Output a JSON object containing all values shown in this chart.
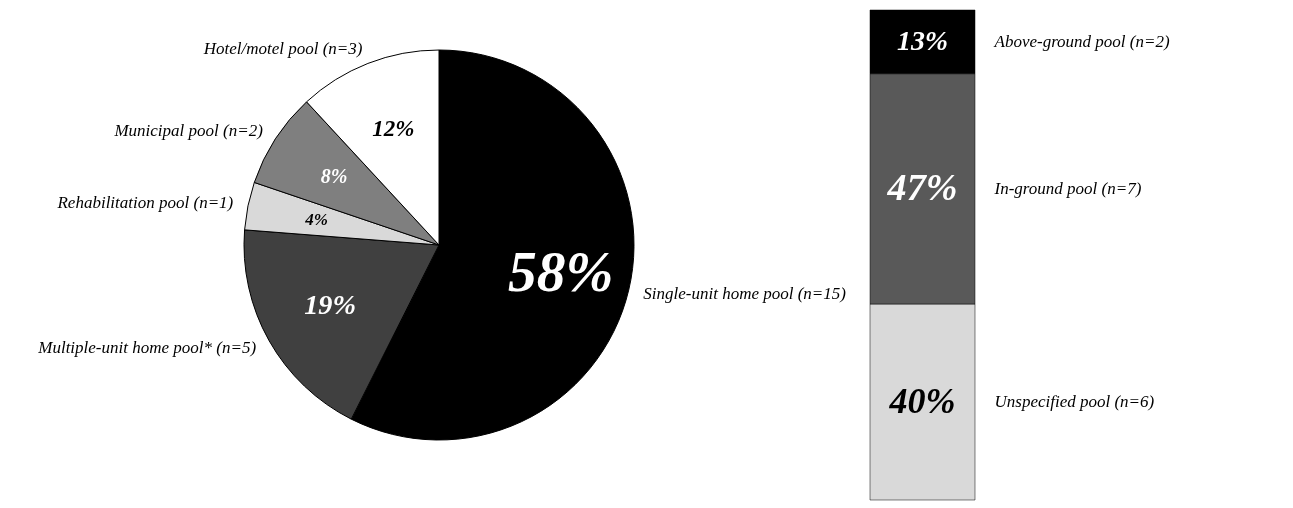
{
  "chart_data": [
    {
      "type": "pie",
      "categories": [
        "Single-unit home pool (n=15)",
        "Multiple-unit home pool* (n=5)",
        "Rehabilitation pool (n=1)",
        "Municipal pool (n=2)",
        "Hotel/motel pool (n=3)"
      ],
      "values": [
        58,
        19,
        4,
        8,
        12
      ],
      "colors": [
        "#000000",
        "#404040",
        "#d9d9d9",
        "#7f7f7f",
        "#ffffff"
      ],
      "value_labels": [
        "58%",
        "19%",
        "4%",
        "8%",
        "12%"
      ]
    },
    {
      "type": "bar",
      "stacked": true,
      "categories": [
        null
      ],
      "tick_labels": false,
      "series": [
        {
          "name": "Unspecified pool (n=6)",
          "color": "#d9d9d9",
          "values": [
            40
          ],
          "value_labels": [
            "40%"
          ]
        },
        {
          "name": "In-ground pool (n=7)",
          "color": "#595959",
          "values": [
            47
          ],
          "value_labels": [
            "47%"
          ]
        },
        {
          "name": "Above-ground pool (n=2)",
          "color": "#000000",
          "values": [
            13
          ],
          "value_labels": [
            "13%"
          ]
        }
      ]
    }
  ]
}
